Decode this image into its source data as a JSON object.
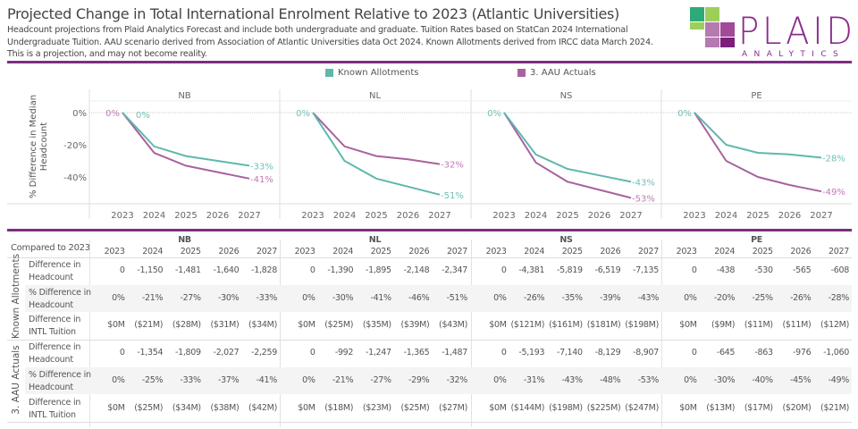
{
  "header": {
    "title": "Projected Change in Total International Enrolment Relative to 2023 (Atlantic Universities)",
    "subtitle": "Headcount projections from Plaid Analytics Forecast and include both undergraduate and graduate. Tuition Rates based on StatCan 2024 International Undergraduate Tuition. AAU scenario derived from Association of Atlantic Universities data Oct 2024. Known Allotments derived from IRCC data March 2024. This is a projection, and may not become reality.",
    "logo": {
      "text": "PLAID",
      "subtext": "ANALYTICS",
      "color": "#8a2c8e"
    }
  },
  "legend": [
    {
      "label": "Known Allotments",
      "color": "#5fb8ad"
    },
    {
      "label": "3. AAU Actuals",
      "color": "#a8639e"
    }
  ],
  "chart_data": {
    "type": "line",
    "ylabel": "% Difference in Median Headcount",
    "yticks": [
      "0%",
      "-20%",
      "-40%"
    ],
    "ylim": [
      -55,
      3
    ],
    "x": [
      2023,
      2024,
      2025,
      2026,
      2027
    ],
    "grid": false,
    "legend_position": "top",
    "panels": [
      {
        "name": "NB",
        "series": [
          {
            "name": "Known Allotments",
            "values": [
              0,
              -21,
              -27,
              -30,
              -33
            ],
            "start_label": "0%",
            "end_label": "-33%"
          },
          {
            "name": "3. AAU Actuals",
            "values": [
              0,
              -25,
              -33,
              -37,
              -41
            ],
            "start_label": "0%",
            "end_label": "-41%"
          }
        ]
      },
      {
        "name": "NL",
        "series": [
          {
            "name": "Known Allotments",
            "values": [
              0,
              -30,
              -41,
              -46,
              -51
            ],
            "start_label": "0%",
            "end_label": "-51%"
          },
          {
            "name": "3. AAU Actuals",
            "values": [
              0,
              -21,
              -27,
              -29,
              -32
            ],
            "start_label": "",
            "end_label": "-32%"
          }
        ]
      },
      {
        "name": "NS",
        "series": [
          {
            "name": "Known Allotments",
            "values": [
              0,
              -26,
              -35,
              -39,
              -43
            ],
            "start_label": "0%",
            "end_label": "-43%"
          },
          {
            "name": "3. AAU Actuals",
            "values": [
              0,
              -31,
              -43,
              -48,
              -53
            ],
            "start_label": "",
            "end_label": "-53%"
          }
        ]
      },
      {
        "name": "PE",
        "series": [
          {
            "name": "Known Allotments",
            "values": [
              0,
              -20,
              -25,
              -26,
              -28
            ],
            "start_label": "0%",
            "end_label": "-28%"
          },
          {
            "name": "3. AAU Actuals",
            "values": [
              0,
              -30,
              -40,
              -45,
              -49
            ],
            "start_label": "",
            "end_label": "-49%"
          }
        ]
      }
    ]
  },
  "table": {
    "corner": "Compared to 2023",
    "years": [
      "2023",
      "2024",
      "2025",
      "2026",
      "2027"
    ],
    "regions": [
      "NB",
      "NL",
      "NS",
      "PE"
    ],
    "groups": [
      {
        "label": "Known Allotments",
        "rows": [
          {
            "measure": "Difference in Headcount",
            "values": [
              [
                "0",
                "-1,150",
                "-1,481",
                "-1,640",
                "-1,828"
              ],
              [
                "0",
                "-1,390",
                "-1,895",
                "-2,148",
                "-2,347"
              ],
              [
                "0",
                "-4,381",
                "-5,819",
                "-6,519",
                "-7,135"
              ],
              [
                "0",
                "-438",
                "-530",
                "-565",
                "-608"
              ]
            ]
          },
          {
            "measure": "% Difference in Headcount",
            "values": [
              [
                "0%",
                "-21%",
                "-27%",
                "-30%",
                "-33%"
              ],
              [
                "0%",
                "-30%",
                "-41%",
                "-46%",
                "-51%"
              ],
              [
                "0%",
                "-26%",
                "-35%",
                "-39%",
                "-43%"
              ],
              [
                "0%",
                "-20%",
                "-25%",
                "-26%",
                "-28%"
              ]
            ]
          },
          {
            "measure": "Difference in INTL Tuition",
            "values": [
              [
                "$0M",
                "($21M)",
                "($28M)",
                "($31M)",
                "($34M)"
              ],
              [
                "$0M",
                "($25M)",
                "($35M)",
                "($39M)",
                "($43M)"
              ],
              [
                "$0M",
                "($121M)",
                "($161M)",
                "($181M)",
                "($198M)"
              ],
              [
                "$0M",
                "($9M)",
                "($11M)",
                "($11M)",
                "($12M)"
              ]
            ]
          }
        ]
      },
      {
        "label": "3. AAU Actuals",
        "rows": [
          {
            "measure": "Difference in Headcount",
            "values": [
              [
                "0",
                "-1,354",
                "-1,809",
                "-2,027",
                "-2,259"
              ],
              [
                "0",
                "-992",
                "-1,247",
                "-1,365",
                "-1,487"
              ],
              [
                "0",
                "-5,193",
                "-7,140",
                "-8,129",
                "-8,907"
              ],
              [
                "0",
                "-645",
                "-863",
                "-976",
                "-1,060"
              ]
            ]
          },
          {
            "measure": "% Difference in Headcount",
            "values": [
              [
                "0%",
                "-25%",
                "-33%",
                "-37%",
                "-41%"
              ],
              [
                "0%",
                "-21%",
                "-27%",
                "-29%",
                "-32%"
              ],
              [
                "0%",
                "-31%",
                "-43%",
                "-48%",
                "-53%"
              ],
              [
                "0%",
                "-30%",
                "-40%",
                "-45%",
                "-49%"
              ]
            ]
          },
          {
            "measure": "Difference in INTL Tuition",
            "values": [
              [
                "$0M",
                "($25M)",
                "($34M)",
                "($38M)",
                "($42M)"
              ],
              [
                "$0M",
                "($18M)",
                "($23M)",
                "($25M)",
                "($27M)"
              ],
              [
                "$0M",
                "($144M)",
                "($198M)",
                "($225M)",
                "($247M)"
              ],
              [
                "$0M",
                "($13M)",
                "($17M)",
                "($20M)",
                "($21M)"
              ]
            ]
          }
        ]
      }
    ]
  }
}
